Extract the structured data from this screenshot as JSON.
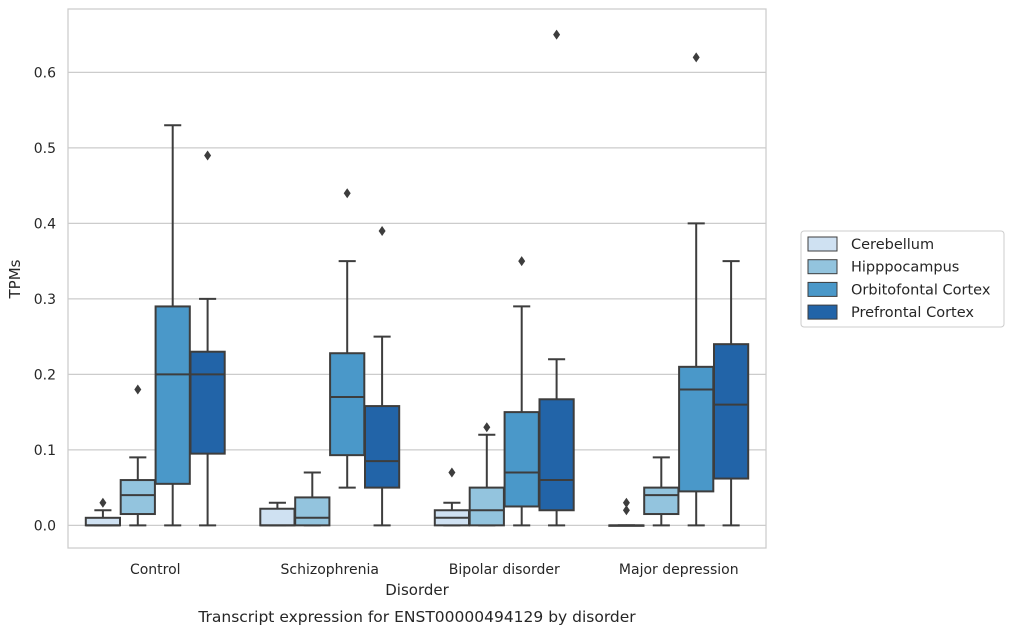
{
  "chart_data": {
    "type": "box",
    "title": "",
    "caption": "Transcript expression for ENST00000494129 by disorder",
    "xlabel": "Disorder",
    "ylabel": "TPMs",
    "ylim": [
      -0.03,
      0.684
    ],
    "yticks": [
      0.0,
      0.1,
      0.2,
      0.3,
      0.4,
      0.5,
      0.6
    ],
    "ytick_labels": [
      "0.0",
      "0.1",
      "0.2",
      "0.3",
      "0.4",
      "0.5",
      "0.6"
    ],
    "grid": "horizontal",
    "legend_position": "right",
    "categories": [
      "Control",
      "Schizophrenia",
      "Bipolar disorder",
      "Major depression"
    ],
    "series": [
      {
        "name": "Cerebellum",
        "color": "#cfe1f2",
        "boxes": [
          {
            "whisker_low": 0.0,
            "q1": 0.0,
            "median": 0.0,
            "q3": 0.01,
            "whisker_high": 0.02,
            "outliers": [
              0.03
            ]
          },
          {
            "whisker_low": 0.0,
            "q1": 0.0,
            "median": 0.0,
            "q3": 0.022,
            "whisker_high": 0.03,
            "outliers": []
          },
          {
            "whisker_low": 0.0,
            "q1": 0.0,
            "median": 0.01,
            "q3": 0.02,
            "whisker_high": 0.03,
            "outliers": [
              0.07
            ]
          },
          {
            "whisker_low": 0.0,
            "q1": 0.0,
            "median": 0.0,
            "q3": 0.0,
            "whisker_high": 0.0,
            "outliers": [
              0.02,
              0.03
            ]
          }
        ]
      },
      {
        "name": "Hipppocampus",
        "color": "#93c4de",
        "boxes": [
          {
            "whisker_low": 0.0,
            "q1": 0.015,
            "median": 0.04,
            "q3": 0.06,
            "whisker_high": 0.09,
            "outliers": [
              0.18
            ]
          },
          {
            "whisker_low": 0.0,
            "q1": 0.0,
            "median": 0.01,
            "q3": 0.037,
            "whisker_high": 0.07,
            "outliers": []
          },
          {
            "whisker_low": 0.0,
            "q1": 0.0,
            "median": 0.02,
            "q3": 0.05,
            "whisker_high": 0.12,
            "outliers": [
              0.13
            ]
          },
          {
            "whisker_low": 0.0,
            "q1": 0.015,
            "median": 0.04,
            "q3": 0.05,
            "whisker_high": 0.09,
            "outliers": []
          }
        ]
      },
      {
        "name": "Orbitofontal Cortex",
        "color": "#4a98c9",
        "boxes": [
          {
            "whisker_low": 0.0,
            "q1": 0.055,
            "median": 0.2,
            "q3": 0.29,
            "whisker_high": 0.53,
            "outliers": []
          },
          {
            "whisker_low": 0.05,
            "q1": 0.093,
            "median": 0.17,
            "q3": 0.228,
            "whisker_high": 0.35,
            "outliers": [
              0.44
            ]
          },
          {
            "whisker_low": 0.0,
            "q1": 0.025,
            "median": 0.07,
            "q3": 0.15,
            "whisker_high": 0.29,
            "outliers": [
              0.35
            ]
          },
          {
            "whisker_low": 0.0,
            "q1": 0.045,
            "median": 0.18,
            "q3": 0.21,
            "whisker_high": 0.4,
            "outliers": [
              0.62
            ]
          }
        ]
      },
      {
        "name": "Prefrontal Cortex",
        "color": "#2264a8",
        "boxes": [
          {
            "whisker_low": 0.0,
            "q1": 0.095,
            "median": 0.2,
            "q3": 0.23,
            "whisker_high": 0.3,
            "outliers": [
              0.49
            ]
          },
          {
            "whisker_low": 0.0,
            "q1": 0.05,
            "median": 0.085,
            "q3": 0.158,
            "whisker_high": 0.25,
            "outliers": [
              0.39
            ]
          },
          {
            "whisker_low": 0.0,
            "q1": 0.02,
            "median": 0.06,
            "q3": 0.167,
            "whisker_high": 0.22,
            "outliers": [
              0.65
            ]
          },
          {
            "whisker_low": 0.0,
            "q1": 0.062,
            "median": 0.16,
            "q3": 0.24,
            "whisker_high": 0.35,
            "outliers": []
          }
        ]
      }
    ]
  }
}
